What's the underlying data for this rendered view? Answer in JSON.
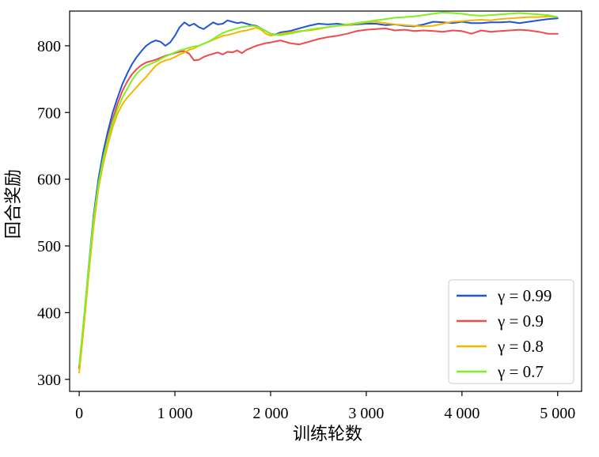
{
  "chart_data": {
    "type": "line",
    "title": "",
    "xlabel": "训练轮数",
    "ylabel": "回合奖励",
    "xlim": [
      -100,
      5250
    ],
    "ylim": [
      282,
      852
    ],
    "xticks": [
      0,
      1000,
      2000,
      3000,
      4000,
      5000
    ],
    "xtick_labels": [
      "0",
      "1 000",
      "2 000",
      "3 000",
      "4 000",
      "5 000"
    ],
    "yticks": [
      300,
      400,
      500,
      600,
      700,
      800
    ],
    "ytick_labels": [
      "300",
      "400",
      "500",
      "600",
      "700",
      "800"
    ],
    "grid": false,
    "legend": "bottom-right",
    "series": [
      {
        "name": "γ = 0.99",
        "color": "#1f55d6",
        "x": [
          0,
          50,
          100,
          150,
          200,
          250,
          300,
          350,
          400,
          450,
          500,
          550,
          600,
          650,
          700,
          750,
          800,
          850,
          900,
          950,
          1000,
          1050,
          1100,
          1150,
          1200,
          1250,
          1300,
          1350,
          1400,
          1450,
          1500,
          1550,
          1600,
          1650,
          1700,
          1750,
          1800,
          1850,
          1900,
          1950,
          2000,
          2050,
          2100,
          2200,
          2300,
          2400,
          2500,
          2600,
          2700,
          2800,
          2900,
          3000,
          3100,
          3200,
          3300,
          3400,
          3500,
          3600,
          3700,
          3800,
          3900,
          4000,
          4100,
          4200,
          4300,
          4400,
          4500,
          4600,
          4700,
          4800,
          4900,
          5000
        ],
        "y": [
          318,
          390,
          470,
          545,
          600,
          640,
          672,
          700,
          722,
          742,
          758,
          772,
          783,
          792,
          800,
          805,
          808,
          806,
          800,
          805,
          815,
          828,
          835,
          830,
          833,
          828,
          825,
          830,
          835,
          832,
          833,
          838,
          836,
          834,
          835,
          833,
          831,
          830,
          826,
          822,
          818,
          817,
          820,
          822,
          826,
          830,
          833,
          832,
          833,
          831,
          832,
          833,
          833,
          831,
          832,
          830,
          829,
          832,
          836,
          835,
          834,
          836,
          834,
          834,
          835,
          835,
          836,
          834,
          836,
          838,
          840,
          841
        ]
      },
      {
        "name": "γ = 0.9",
        "color": "#f04a4a",
        "x": [
          0,
          50,
          100,
          150,
          200,
          250,
          300,
          350,
          400,
          450,
          500,
          550,
          600,
          650,
          700,
          750,
          800,
          850,
          900,
          950,
          1000,
          1050,
          1100,
          1150,
          1200,
          1250,
          1300,
          1350,
          1400,
          1450,
          1500,
          1550,
          1600,
          1650,
          1700,
          1750,
          1800,
          1850,
          1900,
          1950,
          2000,
          2100,
          2200,
          2300,
          2400,
          2500,
          2600,
          2700,
          2800,
          2900,
          3000,
          3100,
          3200,
          3300,
          3400,
          3500,
          3600,
          3700,
          3800,
          3900,
          4000,
          4100,
          4200,
          4300,
          4400,
          4500,
          4600,
          4700,
          4800,
          4900,
          5000
        ],
        "y": [
          316,
          385,
          462,
          535,
          590,
          630,
          663,
          690,
          713,
          732,
          746,
          757,
          765,
          771,
          775,
          777,
          779,
          782,
          785,
          787,
          789,
          791,
          792,
          788,
          778,
          779,
          783,
          786,
          788,
          790,
          787,
          791,
          790,
          793,
          789,
          794,
          797,
          800,
          802,
          804,
          805,
          808,
          804,
          802,
          806,
          810,
          813,
          815,
          818,
          822,
          824,
          825,
          826,
          823,
          824,
          822,
          823,
          822,
          821,
          823,
          822,
          818,
          823,
          821,
          822,
          823,
          824,
          823,
          821,
          818,
          818
        ]
      },
      {
        "name": "γ = 0.8",
        "color": "#f5b700",
        "x": [
          0,
          50,
          100,
          150,
          200,
          250,
          300,
          350,
          400,
          450,
          500,
          550,
          600,
          650,
          700,
          750,
          800,
          850,
          900,
          950,
          1000,
          1050,
          1100,
          1150,
          1200,
          1250,
          1300,
          1350,
          1400,
          1450,
          1500,
          1550,
          1600,
          1650,
          1700,
          1750,
          1800,
          1850,
          1900,
          1950,
          2000,
          2100,
          2200,
          2300,
          2400,
          2500,
          2600,
          2700,
          2800,
          2900,
          3000,
          3100,
          3200,
          3300,
          3400,
          3500,
          3600,
          3700,
          3800,
          3900,
          4000,
          4100,
          4200,
          4300,
          4400,
          4500,
          4600,
          4700,
          4800,
          4900,
          5000
        ],
        "y": [
          310,
          380,
          458,
          528,
          585,
          622,
          652,
          678,
          698,
          712,
          722,
          730,
          738,
          746,
          753,
          762,
          770,
          775,
          778,
          780,
          783,
          787,
          790,
          794,
          796,
          800,
          803,
          806,
          809,
          812,
          815,
          816,
          818,
          820,
          822,
          823,
          825,
          827,
          824,
          818,
          815,
          818,
          820,
          822,
          823,
          825,
          828,
          830,
          831,
          833,
          835,
          836,
          834,
          832,
          831,
          830,
          829,
          830,
          833,
          836,
          837,
          838,
          839,
          838,
          840,
          841,
          842,
          843,
          843,
          844,
          843
        ]
      },
      {
        "name": "γ = 0.7",
        "color": "#7ef023",
        "x": [
          0,
          50,
          100,
          150,
          200,
          250,
          300,
          350,
          400,
          450,
          500,
          550,
          600,
          650,
          700,
          750,
          800,
          850,
          900,
          950,
          1000,
          1050,
          1100,
          1150,
          1200,
          1250,
          1300,
          1350,
          1400,
          1450,
          1500,
          1550,
          1600,
          1650,
          1700,
          1750,
          1800,
          1850,
          1900,
          1950,
          2000,
          2100,
          2200,
          2300,
          2400,
          2500,
          2600,
          2700,
          2800,
          2900,
          3000,
          3100,
          3200,
          3300,
          3400,
          3500,
          3600,
          3700,
          3800,
          3900,
          4000,
          4100,
          4200,
          4300,
          4400,
          4500,
          4600,
          4700,
          4800,
          4900,
          5000
        ],
        "y": [
          322,
          392,
          468,
          540,
          592,
          630,
          660,
          685,
          705,
          722,
          735,
          748,
          758,
          765,
          770,
          773,
          776,
          780,
          784,
          787,
          790,
          793,
          795,
          797,
          799,
          800,
          803,
          806,
          810,
          815,
          819,
          822,
          824,
          826,
          828,
          829,
          830,
          829,
          826,
          822,
          818,
          816,
          818,
          821,
          824,
          826,
          828,
          830,
          832,
          834,
          836,
          838,
          840,
          842,
          843,
          844,
          846,
          848,
          850,
          849,
          848,
          846,
          845,
          846,
          847,
          848,
          849,
          848,
          847,
          846,
          843
        ]
      }
    ]
  }
}
